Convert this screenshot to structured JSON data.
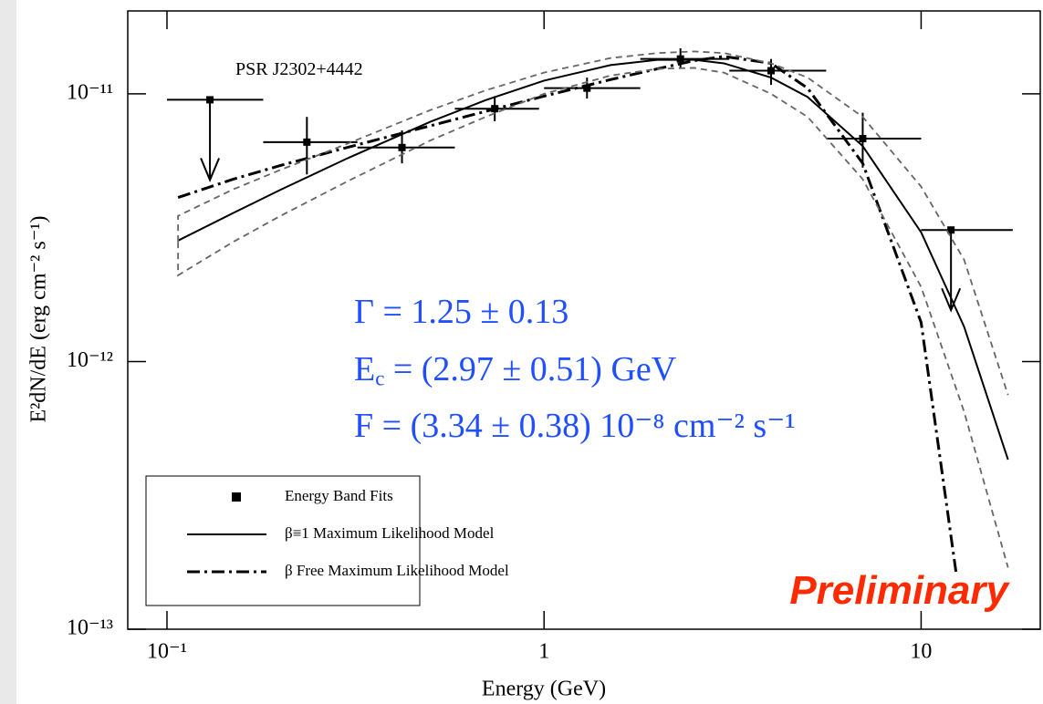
{
  "chart_data": {
    "type": "scatter",
    "ylabel": "E²dN/dE (erg cm⁻² s⁻¹)",
    "xlabel": "Energy (GeV)",
    "log_x": true,
    "log_y": true,
    "xlim": [
      0.0787,
      20.7
    ],
    "ylim": [
      1e-13,
      2.04e-11
    ],
    "xticks": [
      {
        "value": 0.1,
        "label": "10⁻¹"
      },
      1,
      10
    ],
    "yticks": [
      {
        "value": 1e-13,
        "label": "10⁻¹³"
      },
      {
        "value": 1e-12,
        "label": "10⁻¹²"
      },
      {
        "value": 1e-11,
        "label": "10⁻¹¹"
      }
    ],
    "annotations": [
      {
        "parts": [
          {
            "text": "PSR J2302+4442"
          }
        ],
        "color": "#000000"
      },
      {
        "parts": [
          {
            "text": "Γ = 1.25 ± 0.13"
          }
        ],
        "color": "#1f4fff"
      },
      {
        "parts": [
          {
            "text": "E"
          },
          {
            "sub": "c"
          },
          {
            "text": " = (2.97 ± 0.51) GeV"
          }
        ],
        "color": "#1f4fff"
      },
      {
        "parts": [
          {
            "text": "F = (3.34 ± 0.38) 10⁻⁸ cm⁻² s⁻¹"
          }
        ],
        "color": "#1f4fff"
      },
      {
        "parts": [
          {
            "text": "Preliminary"
          }
        ],
        "color": "#ff2a00"
      }
    ],
    "legend": "lower left",
    "series": [
      {
        "name": "Energy Band Fits",
        "kind": "points",
        "color": "#000000",
        "x": [
          0.13,
          0.235,
          0.42,
          0.74,
          1.3,
          2.3,
          4.0,
          7.0,
          12
        ],
        "values": [
          9.5e-12,
          6.6e-12,
          6.3e-12,
          8.8e-12,
          1.05e-11,
          1.35e-11,
          1.22e-11,
          6.8e-12,
          3.1e-12
        ],
        "x_low": [
          0.1,
          0.18,
          0.32,
          0.58,
          1.0,
          1.8,
          3.1,
          5.6,
          10
        ],
        "x_high": [
          0.18,
          0.32,
          0.58,
          0.97,
          1.8,
          3.1,
          5.6,
          10,
          17.5
        ],
        "y_low": [
          null,
          5e-12,
          5.5e-12,
          7.9e-12,
          9.6e-12,
          1.25e-11,
          1.08e-11,
          5.3e-12,
          null
        ],
        "y_high": [
          null,
          8.2e-12,
          7.3e-12,
          9.8e-12,
          1.15e-11,
          1.48e-11,
          1.35e-11,
          8.5e-12,
          null
        ],
        "upper_limits": [
          true,
          false,
          false,
          false,
          false,
          false,
          false,
          false,
          true
        ]
      },
      {
        "name": "β≡1 Maximum Likelihood Model",
        "kind": "line",
        "style": "solid",
        "color": "#000000",
        "x": [
          0.107,
          0.15,
          0.2,
          0.3,
          0.5,
          0.7,
          1,
          1.5,
          2,
          2.5,
          3,
          4,
          5,
          7,
          10,
          13,
          17
        ],
        "values": [
          2.83e-12,
          3.59e-12,
          4.38e-12,
          5.73e-12,
          7.87e-12,
          9.47e-12,
          1.12e-11,
          1.28e-11,
          1.34e-11,
          1.34e-11,
          1.3e-11,
          1.15e-11,
          9.73e-12,
          6.38e-12,
          3.04e-12,
          1.35e-12,
          4.3e-13
        ]
      },
      {
        "name": "β Free Maximum Likelihood Model",
        "kind": "line",
        "style": "dashdot",
        "color": "#000000",
        "x": [
          0.107,
          0.15,
          0.2,
          0.3,
          0.5,
          0.7,
          1,
          1.5,
          2,
          2.5,
          3,
          4,
          5,
          7,
          10,
          12.4
        ],
        "values": [
          4.1e-12,
          4.8e-12,
          5.4e-12,
          6.3e-12,
          7.6e-12,
          8.6e-12,
          9.8e-12,
          1.13e-11,
          1.24e-11,
          1.33e-11,
          1.38e-11,
          1.3e-11,
          1.05e-11,
          5.5e-12,
          1.4e-12,
          1.6e-13
        ]
      },
      {
        "kind": "line",
        "style": "dashed",
        "color": "#666666",
        "x": [
          0.107,
          0.107,
          0.15,
          0.2,
          0.3,
          0.5,
          0.7,
          1,
          1.5,
          2,
          2.5,
          3,
          4,
          5,
          7,
          10,
          13,
          17
        ],
        "values": [
          2.8e-12,
          3.5e-12,
          4.4e-12,
          5.2e-12,
          6.5e-12,
          8.7e-12,
          1.03e-11,
          1.2e-11,
          1.36e-11,
          1.42e-11,
          1.44e-11,
          1.42e-11,
          1.3e-11,
          1.15e-11,
          8.2e-12,
          4.5e-12,
          2.4e-12,
          7.5e-13
        ]
      },
      {
        "kind": "line",
        "style": "dashed",
        "color": "#666666",
        "x": [
          0.107,
          0.107,
          0.15,
          0.2,
          0.3,
          0.5,
          0.7,
          1,
          1.5,
          2,
          2.5,
          3,
          4,
          5,
          7,
          10,
          13,
          17
        ],
        "values": [
          2.8e-12,
          2.1e-12,
          2.8e-12,
          3.5e-12,
          4.7e-12,
          6.7e-12,
          8.2e-12,
          1e-11,
          1.17e-11,
          1.24e-11,
          1.25e-11,
          1.2e-11,
          1e-11,
          8.2e-12,
          4.8e-12,
          1.9e-12,
          6.5e-13,
          1.7e-13
        ]
      }
    ]
  }
}
